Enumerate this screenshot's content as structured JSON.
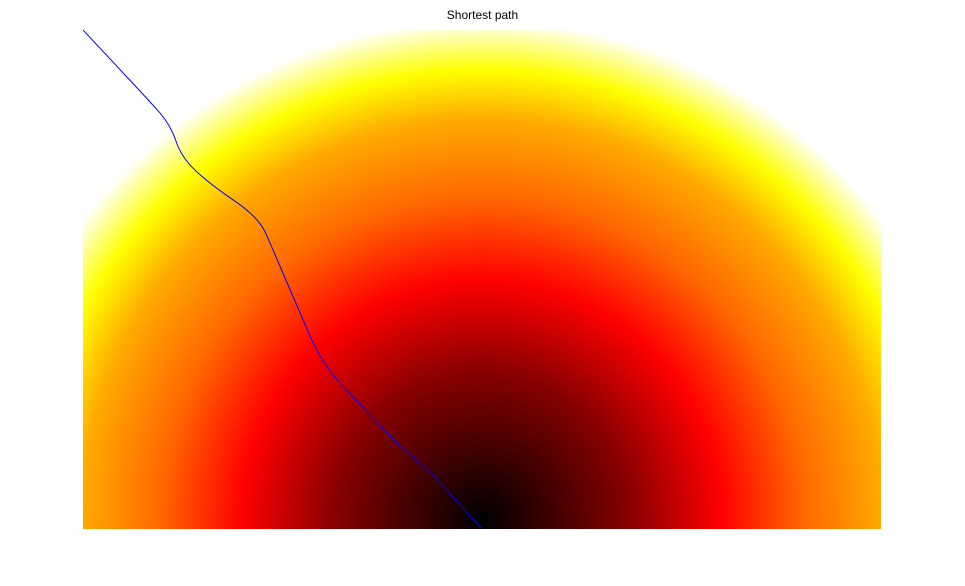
{
  "chart_data": {
    "type": "heatmap",
    "title": "Shortest path",
    "xlabel": "",
    "ylabel": "",
    "axes_visible": false,
    "grid": false,
    "colormap": "hot",
    "colors": {
      "path_line": "#0000ff",
      "colormap_stops": [
        "#000000",
        "#ff0000",
        "#ffff00",
        "#ffffff"
      ]
    },
    "series": [
      {
        "kind": "path",
        "points": [
          [
            0.0,
            1.0
          ],
          [
            0.038,
            0.935
          ],
          [
            0.076,
            0.87
          ],
          [
            0.11,
            0.81
          ],
          [
            0.123,
            0.745
          ],
          [
            0.16,
            0.69
          ],
          [
            0.22,
            0.625
          ],
          [
            0.238,
            0.56
          ],
          [
            0.27,
            0.44
          ],
          [
            0.3,
            0.33
          ],
          [
            0.353,
            0.24
          ],
          [
            0.394,
            0.17
          ],
          [
            0.435,
            0.115
          ],
          [
            0.466,
            0.06
          ],
          [
            0.5,
            0.0
          ]
        ]
      }
    ]
  }
}
